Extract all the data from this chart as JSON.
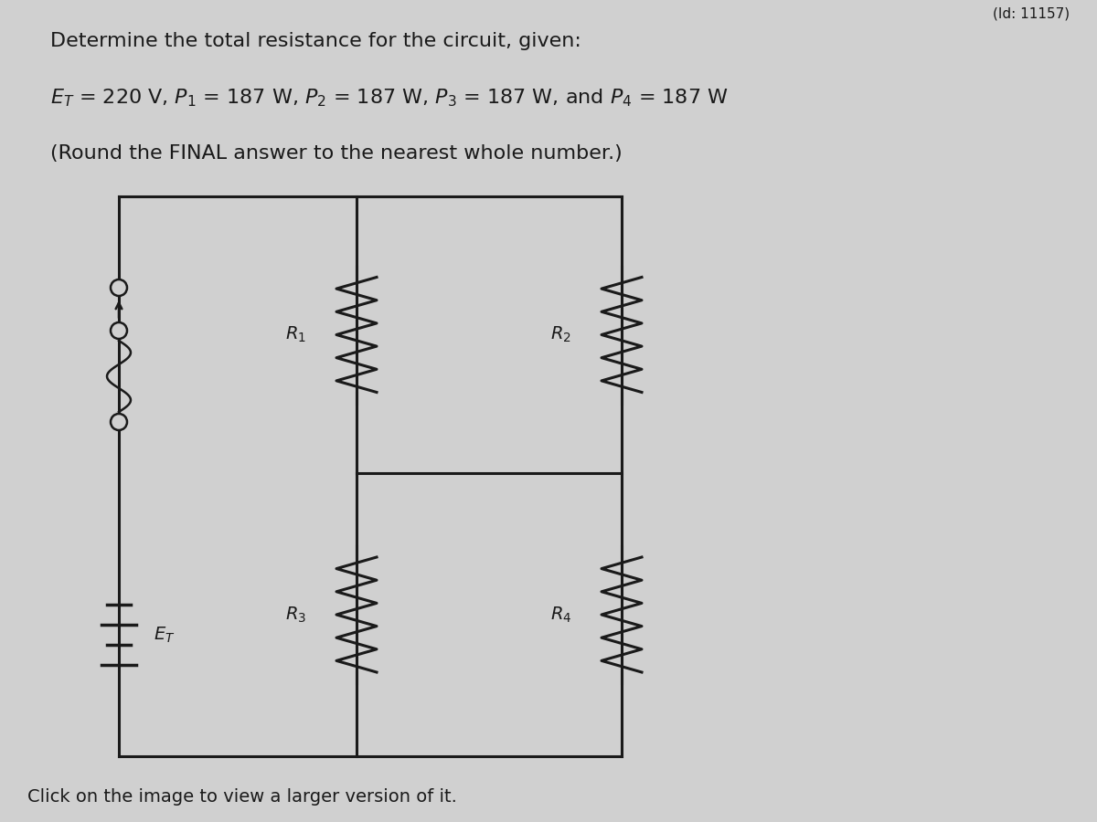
{
  "bg_color": "#d0d0d0",
  "text_color": "#1a1a1a",
  "wire_color": "#1a1a1a",
  "title_line1": "Determine the total resistance for the circuit, given:",
  "title_line2": "$E_T$ = 220 V, $P_1$ = 187 W, $P_2$ = 187 W, $P_3$ = 187 W, and $P_4$ = 187 W",
  "title_line3": "(Round the FINAL answer to the nearest whole number.)",
  "footer": "Click on the image to view a larger version of it.",
  "id_text": "(Id: 11157)",
  "R1_label": "$R_1$",
  "R2_label": "$R_2$",
  "R3_label": "$R_3$",
  "R4_label": "$R_4$",
  "ET_label": "$E_T$",
  "font_size_title": 16,
  "font_size_eq": 16,
  "font_size_labels": 14,
  "font_size_footer": 14,
  "font_size_id": 11
}
